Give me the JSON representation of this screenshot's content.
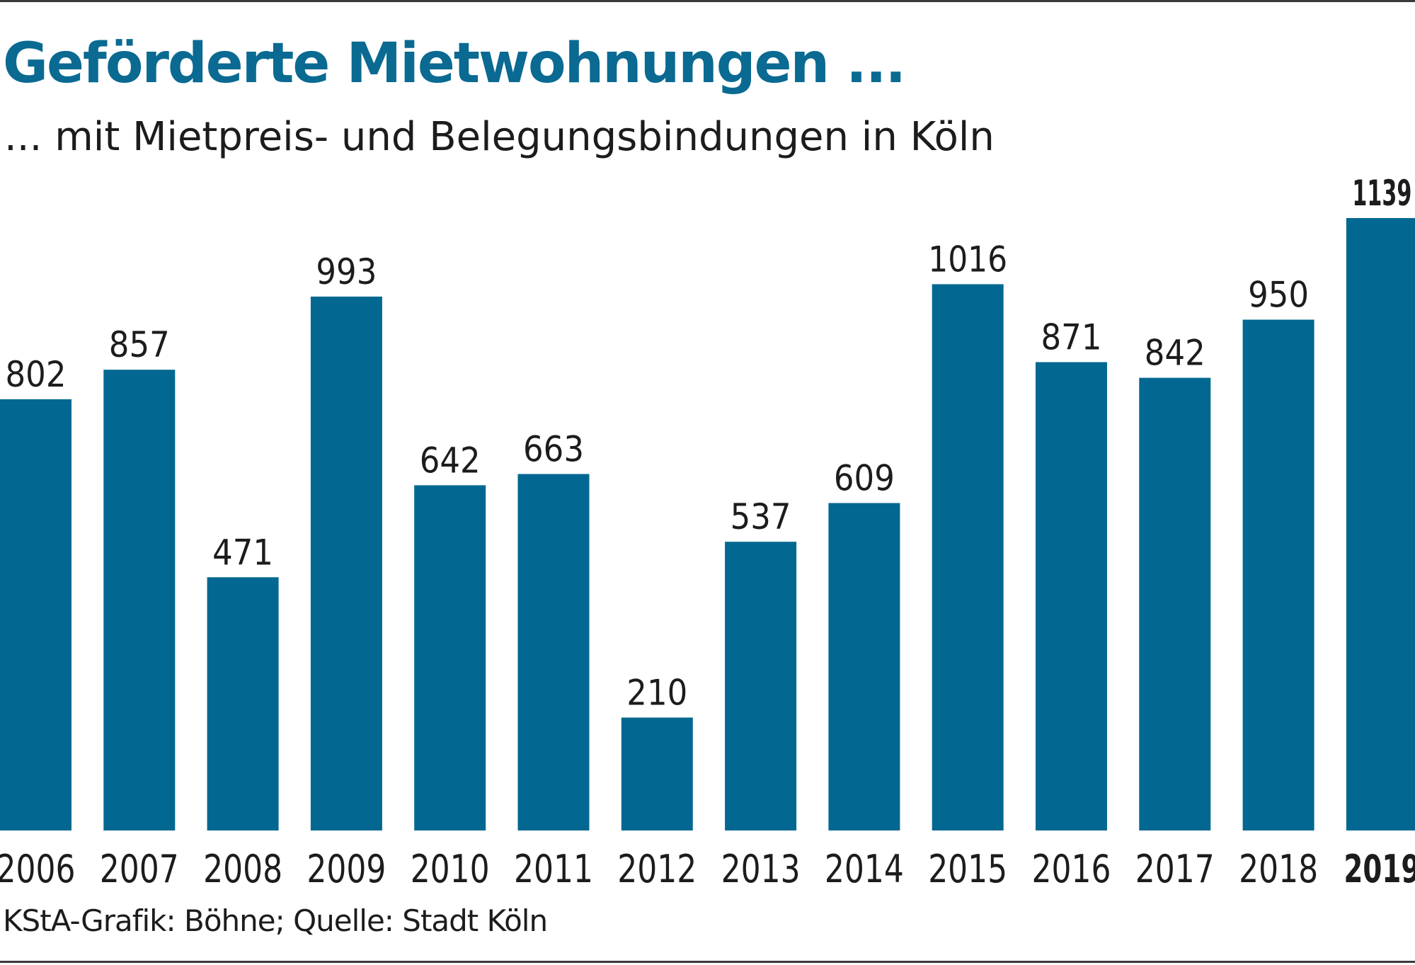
{
  "chart_data": {
    "type": "bar",
    "title": "Geförderte Mietwohnungen ...",
    "subtitle": "... mit Mietpreis- und Belegungsbindungen in Köln",
    "categories": [
      "2006",
      "2007",
      "2008",
      "2009",
      "2010",
      "2011",
      "2012",
      "2013",
      "2014",
      "2015",
      "2016",
      "2017",
      "2018",
      "2019"
    ],
    "values": [
      802,
      857,
      471,
      993,
      642,
      663,
      210,
      537,
      609,
      1016,
      871,
      842,
      950,
      1139
    ],
    "value_labels": [
      "802",
      "857",
      "471",
      "993",
      "642",
      "663",
      "210",
      "537",
      "609",
      "1016",
      "871",
      "842",
      "950",
      "1139"
    ],
    "highlight": "2019",
    "bar_color": "#036891",
    "xlabel": "",
    "ylabel": "",
    "ylim": [
      0,
      1139
    ],
    "grid": false,
    "legend": "none",
    "source": "KStA-Grafik: Böhne; Quelle: Stadt Köln"
  }
}
